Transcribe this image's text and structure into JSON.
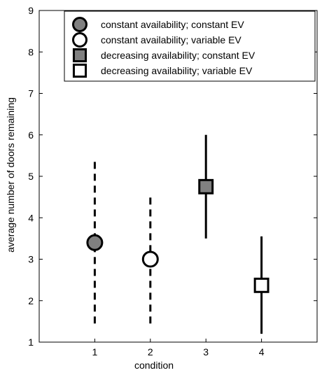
{
  "chart_data": {
    "type": "scatter",
    "xlabel": "condition",
    "ylabel": "average number of doors remaining",
    "xlim": [
      0,
      5
    ],
    "ylim": [
      1,
      9
    ],
    "x_ticks": [
      "1",
      "2",
      "3",
      "4"
    ],
    "y_ticks": [
      "1",
      "2",
      "3",
      "4",
      "5",
      "6",
      "7",
      "8",
      "9"
    ],
    "grid": false,
    "legend_position": "top-right",
    "series": [
      {
        "name": "constant availability; constant EV",
        "marker": "circle",
        "fill": "#808080",
        "x": 1,
        "y": 3.4,
        "err_low": 1.45,
        "err_high": 5.35,
        "err_style": "dashed"
      },
      {
        "name": "constant availability; variable EV",
        "marker": "circle",
        "fill": "#ffffff",
        "x": 2,
        "y": 3.0,
        "err_low": 1.45,
        "err_high": 4.6,
        "err_style": "dashed"
      },
      {
        "name": "decreasing availability; constant EV",
        "marker": "square",
        "fill": "#808080",
        "x": 3,
        "y": 4.75,
        "err_low": 3.5,
        "err_high": 6.0,
        "err_style": "solid"
      },
      {
        "name": "decreasing availability; variable EV",
        "marker": "square",
        "fill": "#ffffff",
        "x": 4,
        "y": 2.37,
        "err_low": 1.2,
        "err_high": 3.55,
        "err_style": "solid"
      }
    ]
  }
}
